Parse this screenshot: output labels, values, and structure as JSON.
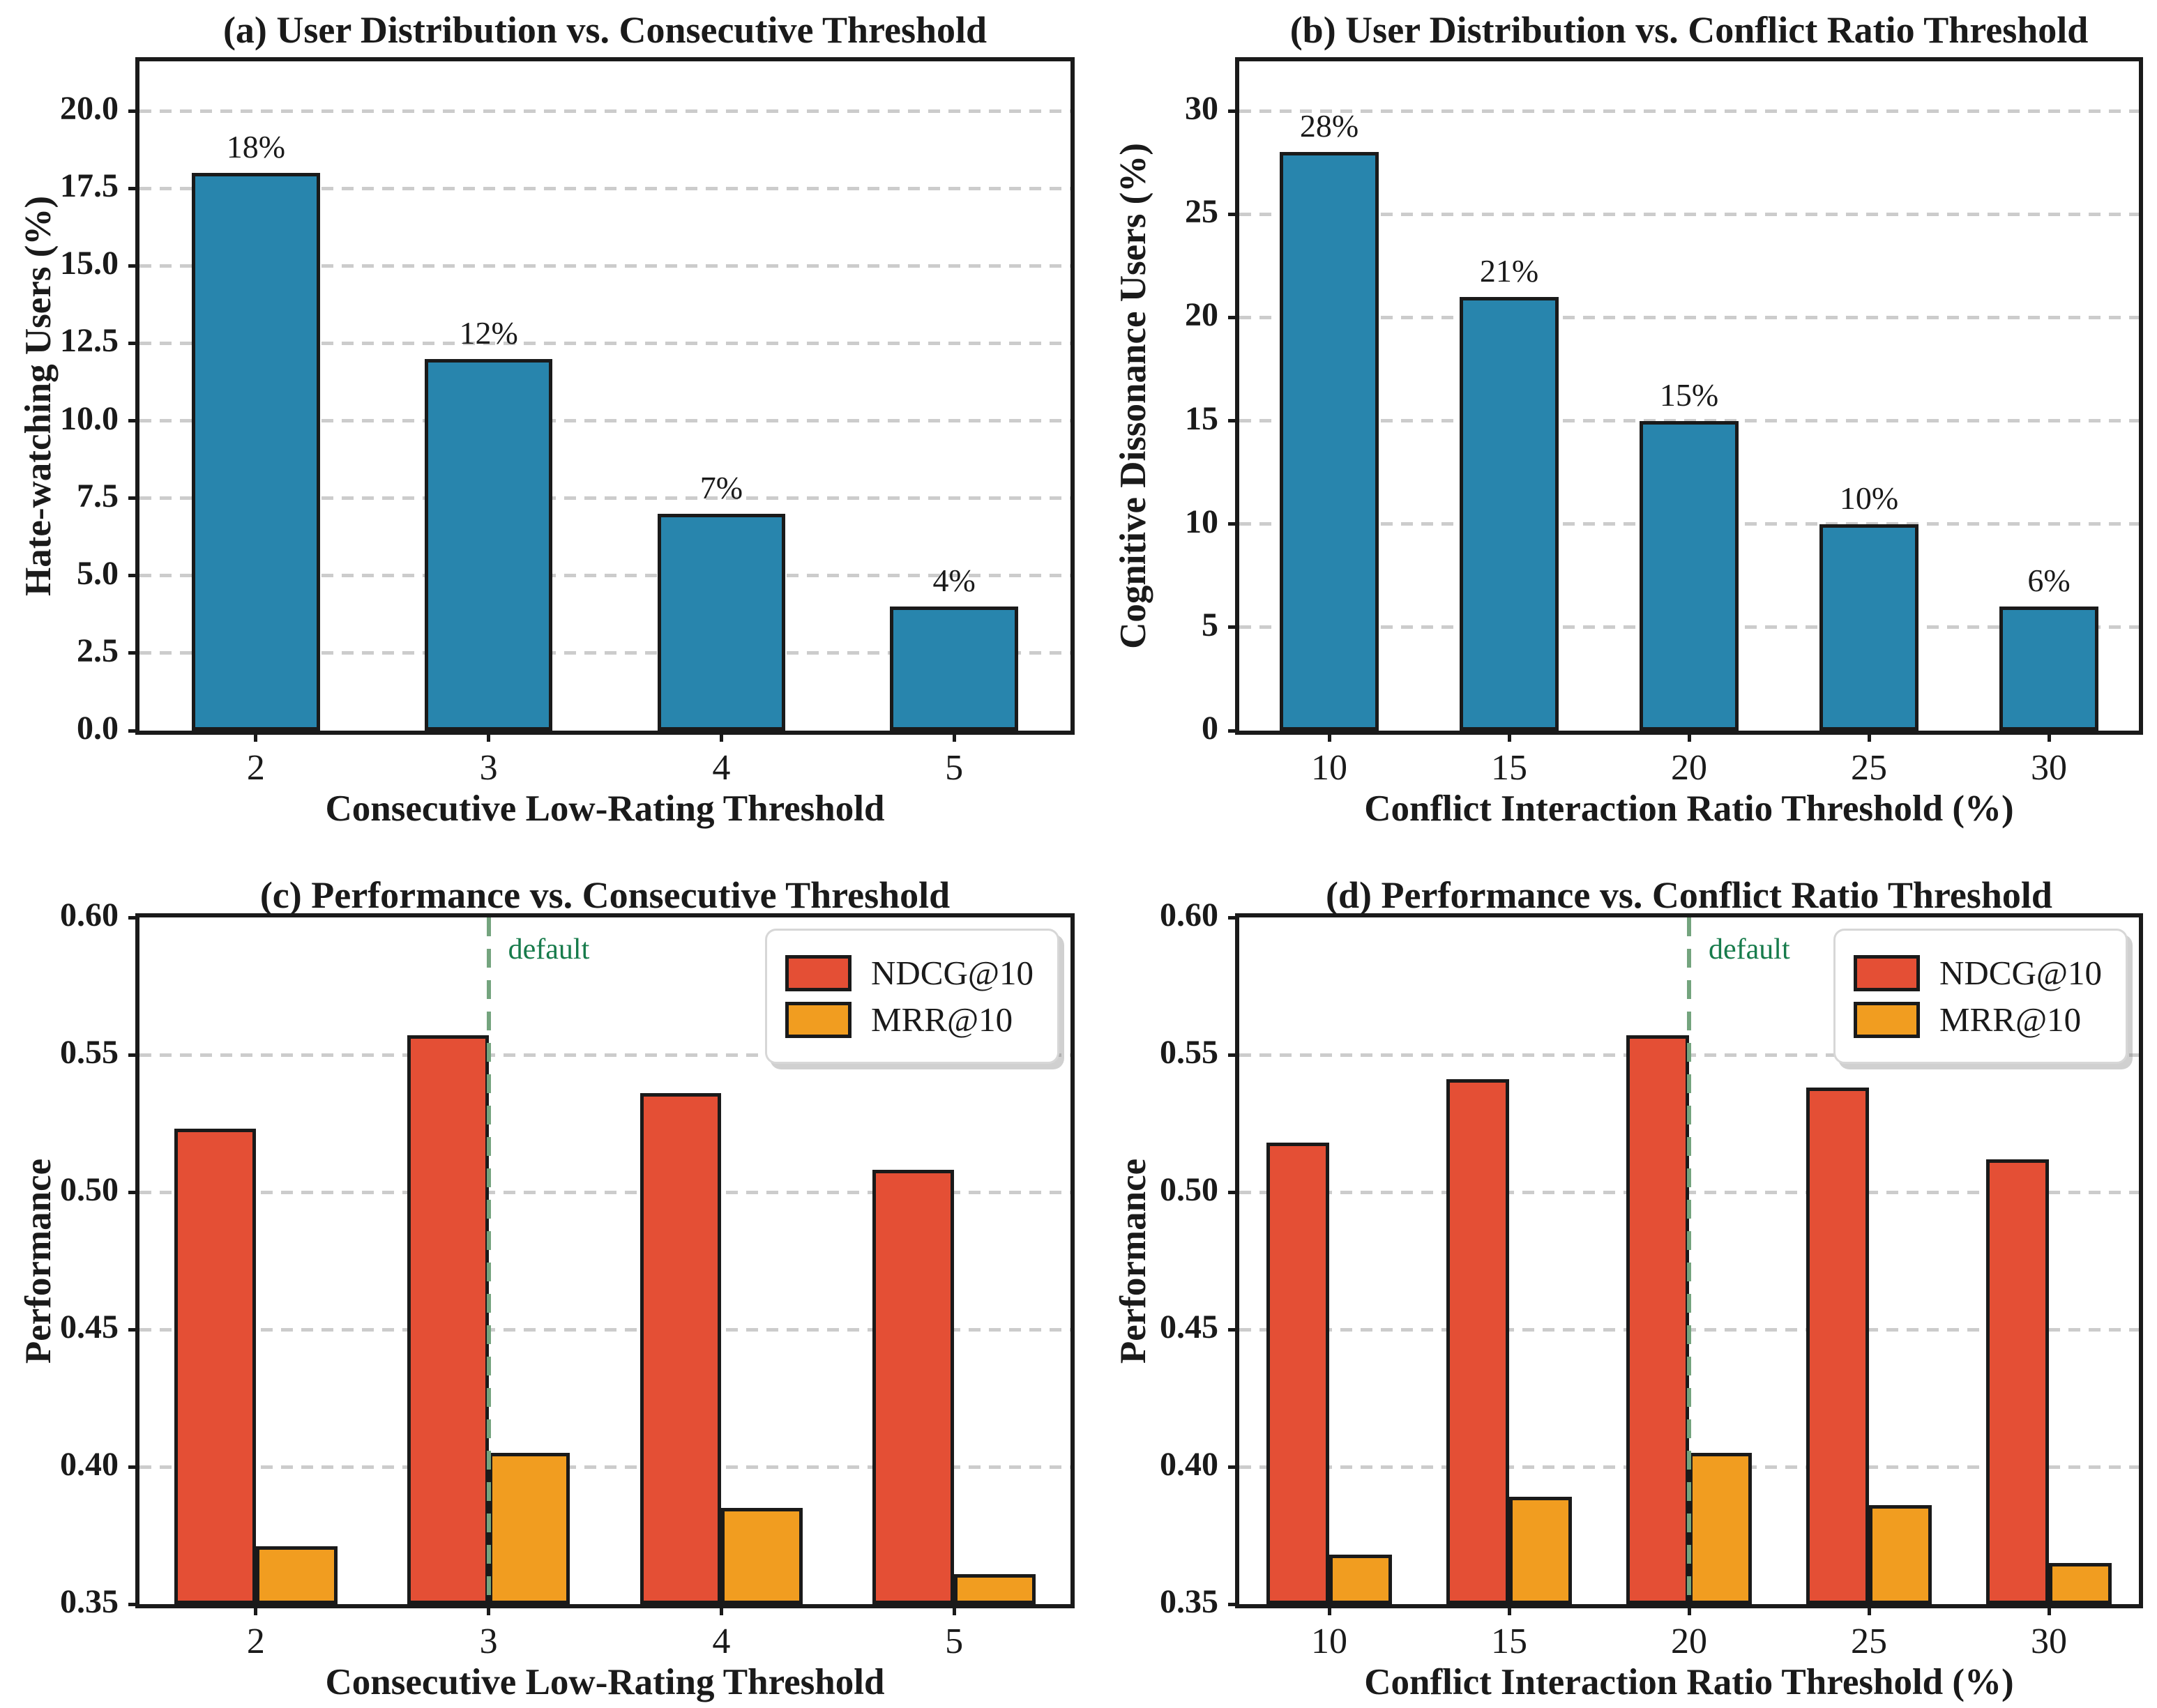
{
  "figure": {
    "background": "#ffffff",
    "edge_color": "#1a1a1a",
    "grid_color": "#cccccc"
  },
  "chart_data": [
    {
      "panel": "a",
      "type": "bar",
      "title": "(a) User Distribution vs. Consecutive Threshold",
      "xlabel": "Consecutive Low-Rating Threshold",
      "ylabel": "Hate-watching Users (%)",
      "categories": [
        "2",
        "3",
        "4",
        "5"
      ],
      "values": [
        18,
        12,
        7,
        4
      ],
      "bar_labels": [
        "18%",
        "12%",
        "7%",
        "4%"
      ],
      "bar_color": "#2885ad",
      "ylim": [
        0,
        21.6
      ],
      "yticks": [
        0,
        2.5,
        5,
        7.5,
        10,
        12.5,
        15,
        17.5,
        20
      ],
      "ytick_labels": [
        "0.0",
        "2.5",
        "5.0",
        "7.5",
        "10.0",
        "12.5",
        "15.0",
        "17.5",
        "20.0"
      ],
      "grid": true
    },
    {
      "panel": "b",
      "type": "bar",
      "title": "(b) User Distribution vs. Conflict Ratio Threshold",
      "xlabel": "Conflict Interaction Ratio Threshold (%)",
      "ylabel": "Cognitive Dissonance Users (%)",
      "categories": [
        "10",
        "15",
        "20",
        "25",
        "30"
      ],
      "values": [
        28,
        21,
        15,
        10,
        6
      ],
      "bar_labels": [
        "28%",
        "21%",
        "15%",
        "10%",
        "6%"
      ],
      "bar_color": "#2885ad",
      "ylim": [
        0,
        32.4
      ],
      "yticks": [
        0,
        5,
        10,
        15,
        20,
        25,
        30
      ],
      "ytick_labels": [
        "0",
        "5",
        "10",
        "15",
        "20",
        "25",
        "30"
      ],
      "grid": true
    },
    {
      "panel": "c",
      "type": "grouped_bar",
      "title": "(c) Performance vs. Consecutive Threshold",
      "xlabel": "Consecutive Low-Rating Threshold",
      "ylabel": "Performance",
      "categories": [
        "2",
        "3",
        "4",
        "5"
      ],
      "series": [
        {
          "name": "NDCG@10",
          "color": "#e44f35",
          "values": [
            0.523,
            0.557,
            0.536,
            0.508
          ]
        },
        {
          "name": "MRR@10",
          "color": "#f19d20",
          "values": [
            0.371,
            0.405,
            0.385,
            0.361
          ]
        }
      ],
      "ylim": [
        0.35,
        0.6
      ],
      "yticks": [
        0.35,
        0.4,
        0.45,
        0.5,
        0.55,
        0.6
      ],
      "ytick_labels": [
        "0.35",
        "0.40",
        "0.45",
        "0.50",
        "0.55",
        "0.60"
      ],
      "default_line": {
        "category": "3",
        "label": "default",
        "line_color": "#74a47e",
        "label_color": "#177b4b"
      },
      "legend": [
        "NDCG@10",
        "MRR@10"
      ],
      "legend_position": "top-right",
      "grid": true
    },
    {
      "panel": "d",
      "type": "grouped_bar",
      "title": "(d) Performance vs. Conflict Ratio Threshold",
      "xlabel": "Conflict Interaction Ratio Threshold (%)",
      "ylabel": "Performance",
      "categories": [
        "10",
        "15",
        "20",
        "25",
        "30"
      ],
      "series": [
        {
          "name": "NDCG@10",
          "color": "#e44f35",
          "values": [
            0.518,
            0.541,
            0.557,
            0.538,
            0.512
          ]
        },
        {
          "name": "MRR@10",
          "color": "#f19d20",
          "values": [
            0.368,
            0.389,
            0.405,
            0.386,
            0.365
          ]
        }
      ],
      "ylim": [
        0.35,
        0.6
      ],
      "yticks": [
        0.35,
        0.4,
        0.45,
        0.5,
        0.55,
        0.6
      ],
      "ytick_labels": [
        "0.35",
        "0.40",
        "0.45",
        "0.50",
        "0.55",
        "0.60"
      ],
      "default_line": {
        "category": "20",
        "label": "default",
        "line_color": "#74a47e",
        "label_color": "#177b4b"
      },
      "legend": [
        "NDCG@10",
        "MRR@10"
      ],
      "legend_position": "top-right",
      "grid": true
    }
  ]
}
